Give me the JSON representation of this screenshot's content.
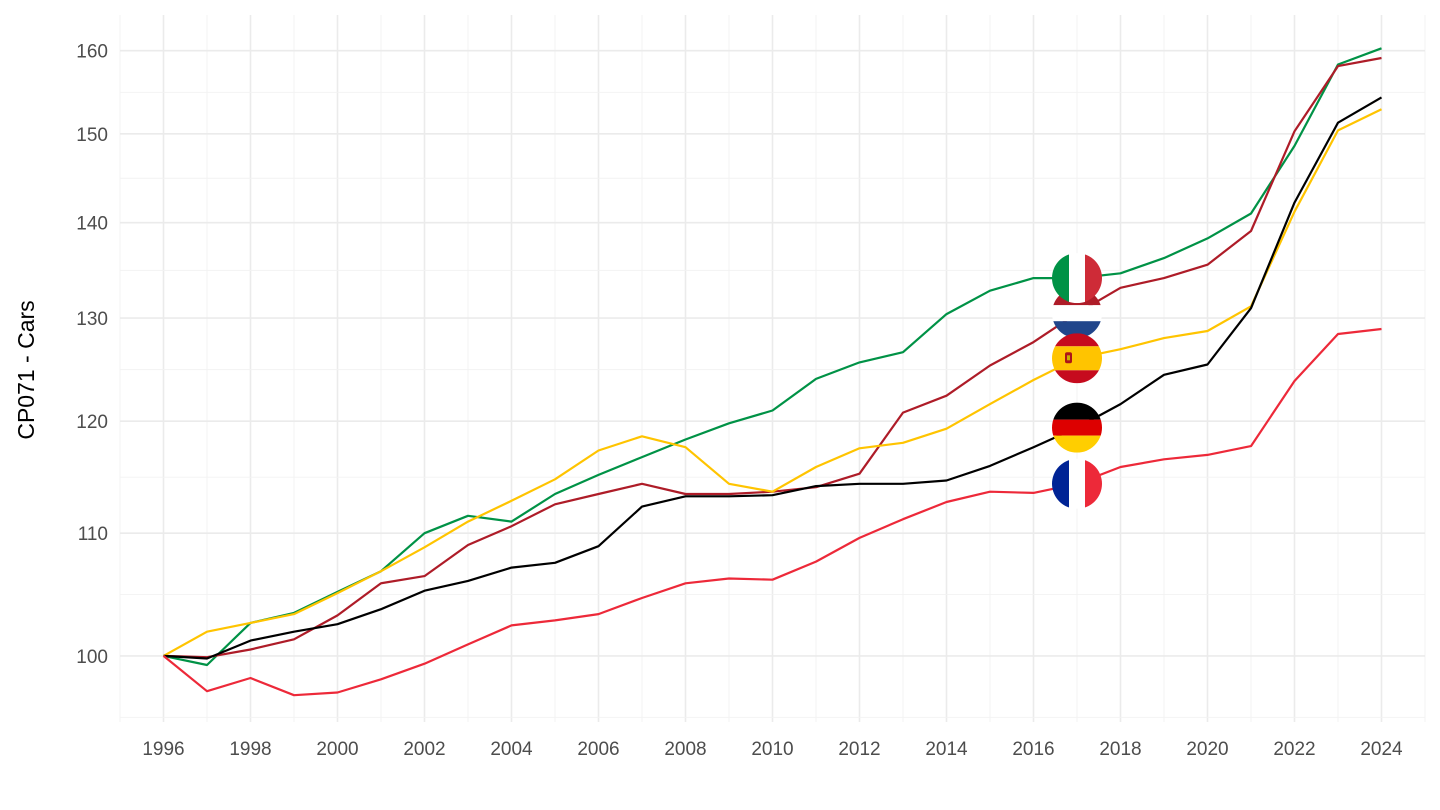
{
  "chart_data": {
    "type": "line",
    "ylabel": "CP071 - Cars",
    "xlabel": "",
    "title": "",
    "y_scale": "log",
    "xlim": [
      1995,
      2025
    ],
    "ylim": [
      95.0,
      164.5
    ],
    "x_ticks": [
      1996,
      1998,
      2000,
      2002,
      2004,
      2006,
      2008,
      2010,
      2012,
      2014,
      2016,
      2018,
      2020,
      2022,
      2024
    ],
    "x_tick_labels": [
      "1996",
      "1998",
      "2000",
      "2002",
      "2004",
      "2006",
      "2008",
      "2010",
      "2012",
      "2014",
      "2016",
      "2018",
      "2020",
      "2022",
      "2024"
    ],
    "y_ticks": [
      100,
      110,
      120,
      130,
      140,
      150,
      160
    ],
    "y_tick_labels": [
      "100",
      "110",
      "120",
      "130",
      "140",
      "150",
      "160"
    ],
    "grid": true,
    "legend": "flags placed on lines at 2017",
    "x": [
      1996,
      1997,
      1998,
      1999,
      2000,
      2001,
      2002,
      2003,
      2004,
      2005,
      2006,
      2007,
      2008,
      2009,
      2010,
      2011,
      2012,
      2013,
      2014,
      2015,
      2016,
      2017,
      2018,
      2019,
      2020,
      2021,
      2022,
      2023,
      2024
    ],
    "series": [
      {
        "flag": "italy",
        "color": "#009246",
        "values": [
          100,
          99.3,
          102.6,
          103.4,
          105.1,
          106.8,
          110.0,
          111.5,
          111.0,
          113.4,
          115.1,
          116.7,
          118.3,
          119.8,
          121.0,
          124.0,
          125.6,
          126.6,
          130.4,
          132.8,
          134.1,
          134.1,
          134.6,
          136.2,
          138.3,
          141.0,
          148.6,
          158.3,
          160.3
        ]
      },
      {
        "flag": "netherlands",
        "color": "#AE1C28",
        "values": [
          100,
          99.9,
          100.5,
          101.3,
          103.2,
          105.8,
          106.4,
          109.0,
          110.6,
          112.5,
          113.4,
          114.3,
          113.4,
          113.4,
          113.6,
          114.0,
          115.2,
          120.8,
          122.4,
          125.3,
          127.6,
          130.5,
          133.1,
          134.1,
          135.5,
          139.1,
          150.3,
          158.1,
          159.1
        ]
      },
      {
        "flag": "spain",
        "color": "#FFC400",
        "values": [
          100,
          101.9,
          102.6,
          103.3,
          105.0,
          106.8,
          108.8,
          111.0,
          112.8,
          114.7,
          117.3,
          118.6,
          117.6,
          114.3,
          113.6,
          115.8,
          117.5,
          118.0,
          119.3,
          121.6,
          123.9,
          126.0,
          126.9,
          128.0,
          128.7,
          131.2,
          141.2,
          150.4,
          152.9
        ]
      },
      {
        "flag": "germany",
        "color": "#000000",
        "values": [
          100,
          99.8,
          101.2,
          101.9,
          102.5,
          103.7,
          105.2,
          106.0,
          107.1,
          107.5,
          108.9,
          112.3,
          113.2,
          113.2,
          113.3,
          114.1,
          114.3,
          114.3,
          114.6,
          115.9,
          117.6,
          119.4,
          121.6,
          124.4,
          125.4,
          131.0,
          142.2,
          151.3,
          154.3
        ]
      },
      {
        "flag": "france",
        "color": "#ED2939",
        "values": [
          100,
          97.3,
          98.3,
          97.0,
          97.2,
          98.2,
          99.4,
          100.9,
          102.4,
          102.8,
          103.3,
          104.6,
          105.8,
          106.2,
          106.1,
          107.6,
          109.6,
          111.2,
          112.7,
          113.6,
          113.5,
          114.3,
          115.8,
          116.5,
          116.9,
          117.7,
          123.8,
          128.4,
          128.9
        ]
      }
    ]
  }
}
